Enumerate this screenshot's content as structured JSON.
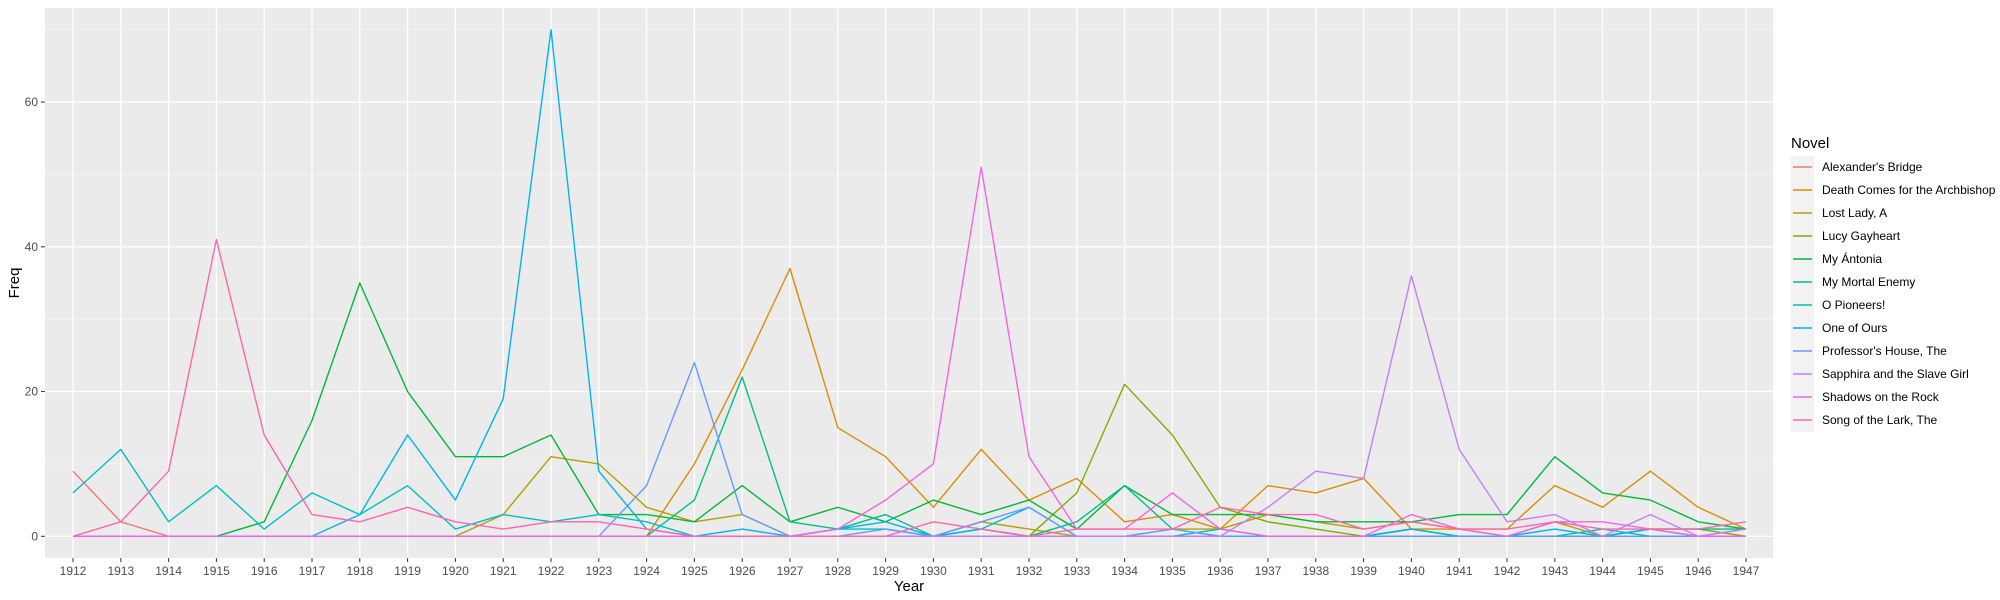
{
  "chart_data": {
    "type": "line",
    "title": "",
    "xlabel": "Year",
    "ylabel": "Freq",
    "ylim": [
      -3,
      73
    ],
    "yticks": [
      0,
      20,
      40,
      60
    ],
    "grid": true,
    "legend_title": "Novel",
    "legend_position": "right",
    "x": [
      "1912",
      "1913",
      "1914",
      "1915",
      "1916",
      "1917",
      "1918",
      "1919",
      "1920",
      "1921",
      "1922",
      "1923",
      "1924",
      "1925",
      "1926",
      "1927",
      "1928",
      "1929",
      "1930",
      "1931",
      "1932",
      "1933",
      "1934",
      "1935",
      "1936",
      "1937",
      "1938",
      "1939",
      "1940",
      "1941",
      "1942",
      "1943",
      "1944",
      "1945",
      "1946",
      "1947"
    ],
    "series": [
      {
        "name": "Alexander's Bridge",
        "color": "#F8766D",
        "values": [
          9,
          2,
          0,
          0,
          0,
          0,
          0,
          0,
          0,
          0,
          0,
          0,
          0,
          0,
          0,
          0,
          0,
          0,
          0,
          0,
          0,
          0,
          0,
          0,
          0,
          0,
          0,
          0,
          0,
          0,
          0,
          0,
          0,
          0,
          0,
          0
        ]
      },
      {
        "name": "Death Comes for the Archbishop",
        "color": "#DE8C00",
        "values": [
          0,
          0,
          0,
          0,
          0,
          0,
          0,
          0,
          0,
          0,
          0,
          0,
          0,
          10,
          23,
          37,
          15,
          11,
          4,
          12,
          5,
          8,
          2,
          3,
          1,
          7,
          6,
          8,
          1,
          1,
          1,
          7,
          4,
          9,
          4,
          1
        ]
      },
      {
        "name": "Lost Lady, A",
        "color": "#B79F00",
        "values": [
          0,
          0,
          0,
          0,
          0,
          0,
          0,
          0,
          0,
          3,
          11,
          10,
          4,
          2,
          3,
          0,
          0,
          0,
          0,
          2,
          1,
          0,
          0,
          1,
          1,
          3,
          2,
          1,
          2,
          1,
          0,
          2,
          0,
          1,
          0,
          1
        ]
      },
      {
        "name": "Lucy Gayheart",
        "color": "#7CAE00",
        "values": [
          0,
          0,
          0,
          0,
          0,
          0,
          0,
          0,
          0,
          0,
          0,
          0,
          0,
          0,
          0,
          0,
          0,
          0,
          0,
          0,
          0,
          6,
          21,
          14,
          4,
          2,
          1,
          0,
          1,
          0,
          0,
          0,
          0,
          1,
          1,
          0
        ]
      },
      {
        "name": "My Ántonia",
        "color": "#00BA38",
        "values": [
          0,
          0,
          0,
          0,
          2,
          16,
          35,
          20,
          11,
          11,
          14,
          3,
          3,
          2,
          7,
          2,
          4,
          2,
          5,
          3,
          5,
          1,
          7,
          3,
          3,
          3,
          2,
          2,
          2,
          3,
          3,
          11,
          6,
          5,
          2,
          1
        ]
      },
      {
        "name": "My Mortal Enemy",
        "color": "#00C08B",
        "values": [
          0,
          0,
          0,
          0,
          0,
          0,
          0,
          0,
          0,
          0,
          0,
          0,
          0,
          5,
          22,
          2,
          1,
          3,
          0,
          1,
          0,
          2,
          7,
          1,
          0,
          0,
          0,
          0,
          1,
          0,
          0,
          0,
          0,
          1,
          1,
          1
        ]
      },
      {
        "name": "O Pioneers!",
        "color": "#00BFC4",
        "values": [
          6,
          12,
          2,
          7,
          1,
          6,
          3,
          7,
          1,
          3,
          2,
          3,
          2,
          0,
          0,
          0,
          1,
          1,
          0,
          1,
          0,
          0,
          0,
          0,
          1,
          0,
          0,
          0,
          0,
          0,
          0,
          0,
          1,
          0,
          0,
          0
        ]
      },
      {
        "name": "One of Ours",
        "color": "#00B4F0",
        "values": [
          0,
          0,
          0,
          0,
          0,
          0,
          3,
          14,
          5,
          19,
          70,
          9,
          1,
          0,
          1,
          0,
          1,
          2,
          0,
          1,
          4,
          0,
          0,
          0,
          0,
          0,
          0,
          0,
          1,
          0,
          0,
          1,
          0,
          1,
          0,
          0
        ]
      },
      {
        "name": "Professor's House, The",
        "color": "#619CFF",
        "values": [
          0,
          0,
          0,
          0,
          0,
          0,
          0,
          0,
          0,
          0,
          0,
          0,
          7,
          24,
          3,
          0,
          0,
          1,
          0,
          2,
          4,
          0,
          0,
          1,
          0,
          0,
          0,
          0,
          0,
          0,
          0,
          0,
          0,
          0,
          0,
          0
        ]
      },
      {
        "name": "Sapphira and the Slave Girl",
        "color": "#C77CFF",
        "values": [
          0,
          0,
          0,
          0,
          0,
          0,
          0,
          0,
          0,
          0,
          0,
          0,
          0,
          0,
          0,
          0,
          0,
          0,
          0,
          0,
          0,
          0,
          0,
          0,
          0,
          4,
          9,
          8,
          36,
          12,
          2,
          3,
          0,
          3,
          0,
          1
        ]
      },
      {
        "name": "Shadows on the Rock",
        "color": "#F564E3",
        "values": [
          0,
          0,
          0,
          0,
          0,
          0,
          0,
          0,
          0,
          0,
          0,
          0,
          0,
          0,
          0,
          0,
          1,
          5,
          10,
          51,
          11,
          1,
          1,
          6,
          1,
          0,
          0,
          0,
          3,
          1,
          0,
          2,
          2,
          1,
          0,
          0
        ]
      },
      {
        "name": "Song of the Lark, The",
        "color": "#FF64B0",
        "values": [
          0,
          2,
          9,
          41,
          14,
          3,
          2,
          4,
          2,
          1,
          2,
          2,
          1,
          0,
          0,
          0,
          0,
          0,
          2,
          1,
          0,
          1,
          1,
          1,
          4,
          3,
          3,
          1,
          2,
          1,
          1,
          2,
          1,
          1,
          1,
          2
        ]
      }
    ]
  }
}
